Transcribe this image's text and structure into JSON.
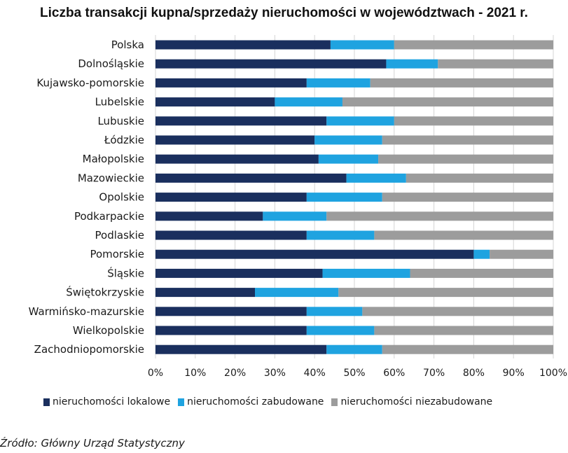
{
  "chart_data": {
    "type": "bar",
    "orientation": "horizontal",
    "stacked": true,
    "title": "Liczba transakcji kupna/sprzedaży nieruchomości w województwach - 2021 r.",
    "categories": [
      "Polska",
      "Dolnośląskie",
      "Kujawsko-pomorskie",
      "Lubelskie",
      "Lubuskie",
      "Łódzkie",
      "Małopolskie",
      "Mazowieckie",
      "Opolskie",
      "Podkarpackie",
      "Podlaskie",
      "Pomorskie",
      "Śląskie",
      "Świętokrzyskie",
      "Warmińsko-mazurskie",
      "Wielkopolskie",
      "Zachodniopomorskie"
    ],
    "series": [
      {
        "name": "nieruchomości lokalowe",
        "color": "#1a2f5e",
        "values": [
          44,
          58,
          38,
          30,
          43,
          40,
          41,
          48,
          38,
          27,
          38,
          80,
          42,
          25,
          38,
          38,
          43
        ]
      },
      {
        "name": "nieruchomości zabudowane",
        "color": "#1fa3e0",
        "values": [
          16,
          13,
          16,
          17,
          17,
          17,
          15,
          15,
          19,
          16,
          17,
          4,
          22,
          21,
          14,
          17,
          14
        ]
      },
      {
        "name": "nieruchomości niezabudowane",
        "color": "#9c9c9c",
        "values": [
          40,
          29,
          46,
          53,
          40,
          43,
          44,
          37,
          43,
          57,
          45,
          16,
          36,
          54,
          48,
          45,
          43
        ]
      }
    ],
    "xlim": [
      0,
      100
    ],
    "xticks": [
      "0%",
      "10%",
      "20%",
      "30%",
      "40%",
      "50%",
      "60%",
      "70%",
      "80%",
      "90%",
      "100%"
    ],
    "xlabel": "",
    "ylabel": "",
    "grid": "vertical",
    "legend_position": "bottom"
  },
  "source": "Źródło: Główny Urząd Statystyczny"
}
